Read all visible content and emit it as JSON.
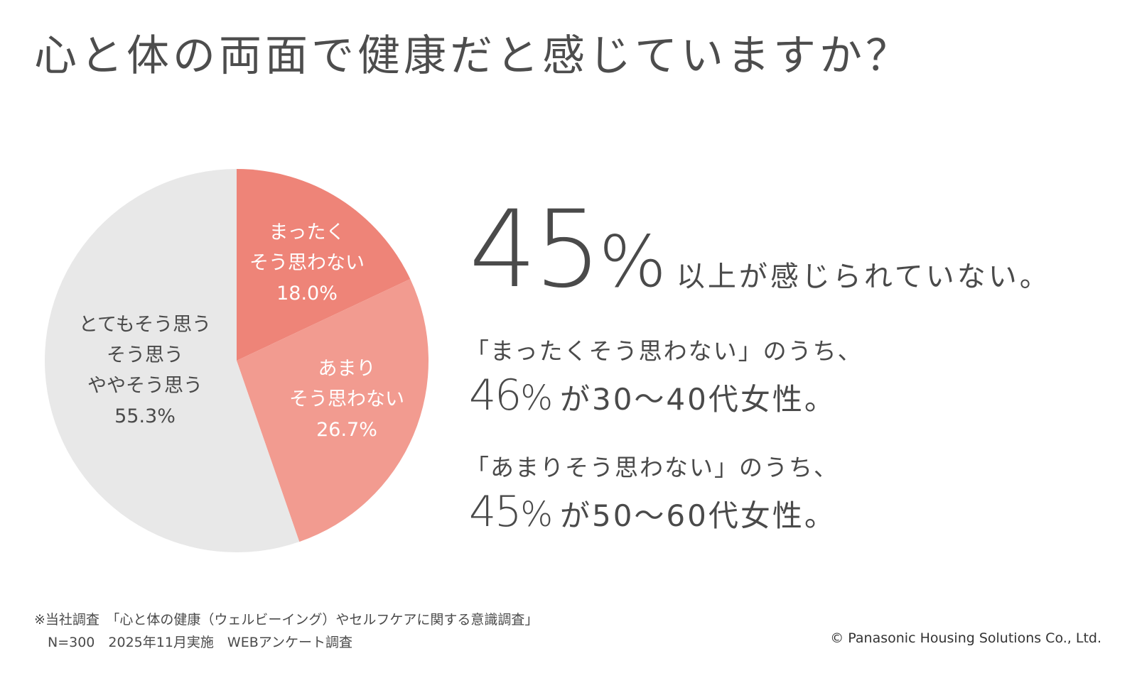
{
  "title": "心と体の両面で健康だと感じていますか？",
  "chart_data": {
    "type": "pie",
    "start": "12 o'clock, clockwise",
    "slices": [
      {
        "label_lines": [
          "まったく",
          "そう思わない",
          "18.0%"
        ],
        "value": 18.0,
        "color": "#ee8478",
        "label_color": "#ffffff"
      },
      {
        "label_lines": [
          "あまり",
          "そう思わない",
          "26.7%"
        ],
        "value": 26.7,
        "color": "#f29b90",
        "label_color": "#ffffff"
      },
      {
        "label_lines": [
          "とてもそう思う",
          "そう思う",
          "ややそう思う",
          "55.3%"
        ],
        "value": 55.3,
        "color": "#e8e8e8",
        "label_color": "#4a4a4a"
      }
    ]
  },
  "headline": {
    "number": "45",
    "percent": "%",
    "suffix": "以上が感じられていない。"
  },
  "stats": [
    {
      "quote": "「まったくそう思わない」のうち、",
      "number": "46",
      "percent": "%",
      "suffix": "が30～40代女性。"
    },
    {
      "quote": "「あまりそう思わない」のうち、",
      "number": "45",
      "percent": "%",
      "suffix": "が50～60代女性。"
    }
  ],
  "footnote": {
    "line1": "※当社調査　「心と体の健康（ウェルビーイング）やセルフケアに関する意識調査」",
    "line2": "　N=300　2025年11月実施　WEBアンケート調査"
  },
  "copyright": "© Panasonic Housing Solutions Co., Ltd."
}
